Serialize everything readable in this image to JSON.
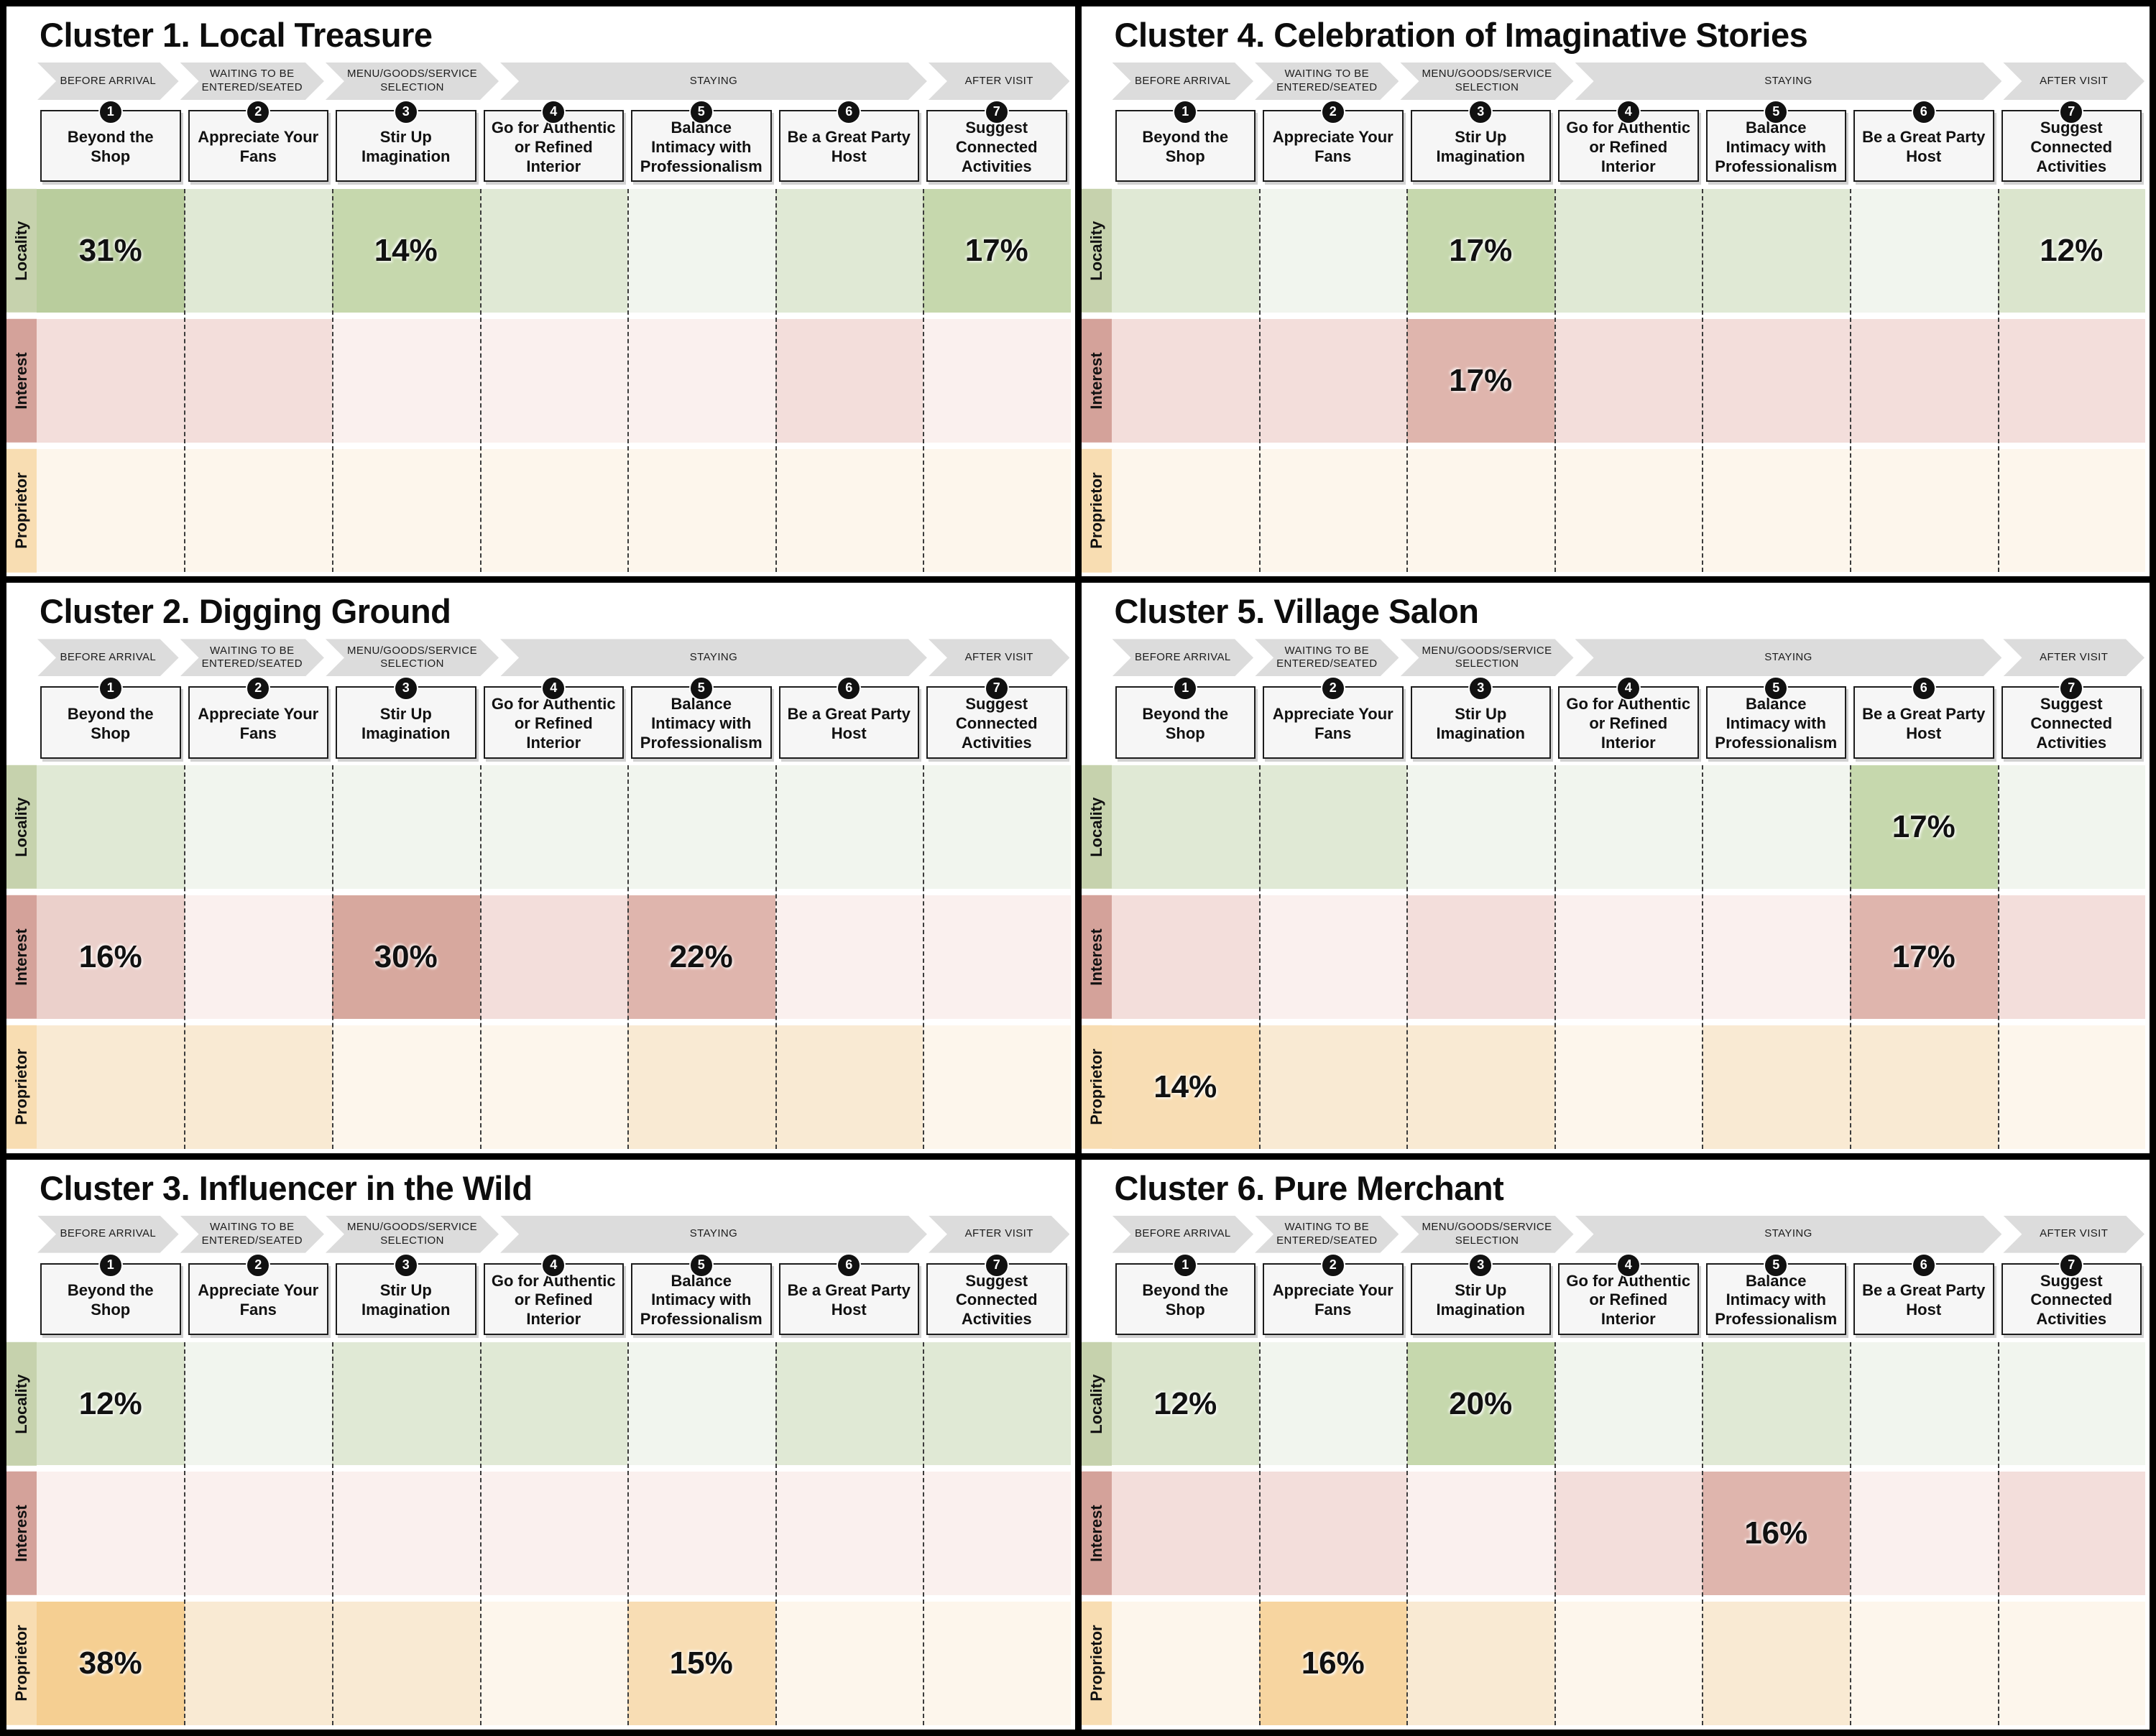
{
  "palette": {
    "green": [
      "#f1f5ee",
      "#e0e9d5",
      "#dbe5cd",
      "#c6d8ad",
      "#b9cd9d"
    ],
    "red": [
      "#faf0ee",
      "#f3dedb",
      "#ebd0cb",
      "#dfb5ad",
      "#d7a89e"
    ],
    "orange": [
      "#fdf6ec",
      "#f9ead3",
      "#f8ddb4",
      "#f7d5a0",
      "#f5cf92"
    ],
    "row_label_bg": [
      "#c6d2ad",
      "#d4a29a",
      "#f8ddb2"
    ],
    "chevron_bg": "#dcdcdc",
    "step_box_bg": "#f6f6f6",
    "step_box_border": "#1c1c1c",
    "divider_dash": "#3c3c3c",
    "frame": "#000000"
  },
  "journey": {
    "phases": [
      {
        "label": "BEFORE ARRIVAL",
        "span": 1
      },
      {
        "label": "WAITING TO BE ENTERED/SEATED",
        "span": 1
      },
      {
        "label": "MENU/GOODS/SERVICE SELECTION",
        "span": 1
      },
      {
        "label": "STAYING",
        "span": 3
      },
      {
        "label": "AFTER VISIT",
        "span": 1
      }
    ],
    "steps": [
      {
        "number": "1",
        "label": "Beyond the Shop"
      },
      {
        "number": "2",
        "label": "Appreciate Your Fans"
      },
      {
        "number": "3",
        "label": "Stir Up Imagination"
      },
      {
        "number": "4",
        "label": "Go for Authentic or Refined Interior"
      },
      {
        "number": "5",
        "label": "Balance Intimacy with Professionalism"
      },
      {
        "number": "6",
        "label": "Be a Great Party Host"
      },
      {
        "number": "7",
        "label": "Suggest Connected Activities"
      }
    ]
  },
  "rows": [
    "Locality",
    "Interest",
    "Proprietor"
  ],
  "panels": [
    {
      "title": "Cluster 1. Local Treasure",
      "cells": [
        [
          {
            "value": "31%",
            "tone": 4
          },
          {
            "tone": 1
          },
          {
            "value": "14%",
            "tone": 3
          },
          {
            "tone": 1
          },
          {
            "tone": 0
          },
          {
            "tone": 1
          },
          {
            "value": "17%",
            "tone": 3
          }
        ],
        [
          {
            "tone": 1
          },
          {
            "tone": 1
          },
          {
            "tone": 0
          },
          {
            "tone": 0
          },
          {
            "tone": 0
          },
          {
            "tone": 1
          },
          {
            "tone": 0
          }
        ],
        [
          {
            "tone": 0
          },
          {
            "tone": 0
          },
          {
            "tone": 0
          },
          {
            "tone": 0
          },
          {
            "tone": 0
          },
          {
            "tone": 0
          },
          {
            "tone": 0
          }
        ]
      ]
    },
    {
      "title": "Cluster 4. Celebration of Imaginative Stories",
      "cells": [
        [
          {
            "tone": 1
          },
          {
            "tone": 0
          },
          {
            "value": "17%",
            "tone": 3
          },
          {
            "tone": 1
          },
          {
            "tone": 1
          },
          {
            "tone": 0
          },
          {
            "value": "12%",
            "tone": 2
          }
        ],
        [
          {
            "tone": 1
          },
          {
            "tone": 1
          },
          {
            "value": "17%",
            "tone": 3
          },
          {
            "tone": 1
          },
          {
            "tone": 1
          },
          {
            "tone": 1
          },
          {
            "tone": 1
          }
        ],
        [
          {
            "tone": 0
          },
          {
            "tone": 0
          },
          {
            "tone": 0
          },
          {
            "tone": 0
          },
          {
            "tone": 0
          },
          {
            "tone": 0
          },
          {
            "tone": 0
          }
        ]
      ]
    },
    {
      "title": "Cluster 2. Digging Ground",
      "cells": [
        [
          {
            "tone": 1
          },
          {
            "tone": 0
          },
          {
            "tone": 0
          },
          {
            "tone": 0
          },
          {
            "tone": 0
          },
          {
            "tone": 0
          },
          {
            "tone": 0
          }
        ],
        [
          {
            "value": "16%",
            "tone": 2
          },
          {
            "tone": 0
          },
          {
            "value": "30%",
            "tone": 4
          },
          {
            "tone": 1
          },
          {
            "value": "22%",
            "tone": 3
          },
          {
            "tone": 0
          },
          {
            "tone": 0
          }
        ],
        [
          {
            "tone": 1
          },
          {
            "tone": 1
          },
          {
            "tone": 0
          },
          {
            "tone": 0
          },
          {
            "tone": 1
          },
          {
            "tone": 1
          },
          {
            "tone": 0
          }
        ]
      ]
    },
    {
      "title": "Cluster 5. Village Salon",
      "cells": [
        [
          {
            "tone": 1
          },
          {
            "tone": 1
          },
          {
            "tone": 0
          },
          {
            "tone": 0
          },
          {
            "tone": 0
          },
          {
            "value": "17%",
            "tone": 3
          },
          {
            "tone": 0
          }
        ],
        [
          {
            "tone": 1
          },
          {
            "tone": 0
          },
          {
            "tone": 1
          },
          {
            "tone": 0
          },
          {
            "tone": 0
          },
          {
            "value": "17%",
            "tone": 3
          },
          {
            "tone": 1
          }
        ],
        [
          {
            "value": "14%",
            "tone": 2
          },
          {
            "tone": 1
          },
          {
            "tone": 1
          },
          {
            "tone": 0
          },
          {
            "tone": 1
          },
          {
            "tone": 1
          },
          {
            "tone": 0
          }
        ]
      ]
    },
    {
      "title": "Cluster 3. Influencer in the Wild",
      "cells": [
        [
          {
            "value": "12%",
            "tone": 2
          },
          {
            "tone": 0
          },
          {
            "tone": 1
          },
          {
            "tone": 1
          },
          {
            "tone": 0
          },
          {
            "tone": 1
          },
          {
            "tone": 1
          }
        ],
        [
          {
            "tone": 0
          },
          {
            "tone": 0
          },
          {
            "tone": 0
          },
          {
            "tone": 0
          },
          {
            "tone": 0
          },
          {
            "tone": 0
          },
          {
            "tone": 0
          }
        ],
        [
          {
            "value": "38%",
            "tone": 4
          },
          {
            "tone": 1
          },
          {
            "tone": 1
          },
          {
            "tone": 0
          },
          {
            "value": "15%",
            "tone": 2
          },
          {
            "tone": 0
          },
          {
            "tone": 0
          }
        ]
      ]
    },
    {
      "title": "Cluster 6. Pure Merchant",
      "cells": [
        [
          {
            "value": "12%",
            "tone": 2
          },
          {
            "tone": 0
          },
          {
            "value": "20%",
            "tone": 3
          },
          {
            "tone": 0
          },
          {
            "tone": 1
          },
          {
            "tone": 0
          },
          {
            "tone": 0
          }
        ],
        [
          {
            "tone": 1
          },
          {
            "tone": 1
          },
          {
            "tone": 0
          },
          {
            "tone": 1
          },
          {
            "value": "16%",
            "tone": 3
          },
          {
            "tone": 0
          },
          {
            "tone": 1
          }
        ],
        [
          {
            "tone": 0
          },
          {
            "value": "16%",
            "tone": 3
          },
          {
            "tone": 1
          },
          {
            "tone": 0
          },
          {
            "tone": 1
          },
          {
            "tone": 0
          },
          {
            "tone": 0
          }
        ]
      ]
    }
  ],
  "chart_data": [
    {
      "type": "heatmap",
      "title": "Cluster 1. Local Treasure",
      "rows": [
        "Locality",
        "Interest",
        "Proprietor"
      ],
      "columns": [
        "Beyond the Shop",
        "Appreciate Your Fans",
        "Stir Up Imagination",
        "Go for Authentic or Refined Interior",
        "Balance Intimacy with Professionalism",
        "Be a Great Party Host",
        "Suggest Connected Activities"
      ],
      "values_unit": "percent",
      "values": [
        [
          31,
          null,
          14,
          null,
          null,
          null,
          17
        ],
        [
          null,
          null,
          null,
          null,
          null,
          null,
          null
        ],
        [
          null,
          null,
          null,
          null,
          null,
          null,
          null
        ]
      ]
    },
    {
      "type": "heatmap",
      "title": "Cluster 2. Digging Ground",
      "rows": [
        "Locality",
        "Interest",
        "Proprietor"
      ],
      "columns": [
        "Beyond the Shop",
        "Appreciate Your Fans",
        "Stir Up Imagination",
        "Go for Authentic or Refined Interior",
        "Balance Intimacy with Professionalism",
        "Be a Great Party Host",
        "Suggest Connected Activities"
      ],
      "values_unit": "percent",
      "values": [
        [
          null,
          null,
          null,
          null,
          null,
          null,
          null
        ],
        [
          16,
          null,
          30,
          null,
          22,
          null,
          null
        ],
        [
          null,
          null,
          null,
          null,
          null,
          null,
          null
        ]
      ]
    },
    {
      "type": "heatmap",
      "title": "Cluster 3. Influencer in the Wild",
      "rows": [
        "Locality",
        "Interest",
        "Proprietor"
      ],
      "columns": [
        "Beyond the Shop",
        "Appreciate Your Fans",
        "Stir Up Imagination",
        "Go for Authentic or Refined Interior",
        "Balance Intimacy with Professionalism",
        "Be a Great Party Host",
        "Suggest Connected Activities"
      ],
      "values_unit": "percent",
      "values": [
        [
          12,
          null,
          null,
          null,
          null,
          null,
          null
        ],
        [
          null,
          null,
          null,
          null,
          null,
          null,
          null
        ],
        [
          38,
          null,
          null,
          null,
          15,
          null,
          null
        ]
      ]
    },
    {
      "type": "heatmap",
      "title": "Cluster 4. Celebration of Imaginative Stories",
      "rows": [
        "Locality",
        "Interest",
        "Proprietor"
      ],
      "columns": [
        "Beyond the Shop",
        "Appreciate Your Fans",
        "Stir Up Imagination",
        "Go for Authentic or Refined Interior",
        "Balance Intimacy with Professionalism",
        "Be a Great Party Host",
        "Suggest Connected Activities"
      ],
      "values_unit": "percent",
      "values": [
        [
          null,
          null,
          17,
          null,
          null,
          null,
          12
        ],
        [
          null,
          null,
          17,
          null,
          null,
          null,
          null
        ],
        [
          null,
          null,
          null,
          null,
          null,
          null,
          null
        ]
      ]
    },
    {
      "type": "heatmap",
      "title": "Cluster 5. Village Salon",
      "rows": [
        "Locality",
        "Interest",
        "Proprietor"
      ],
      "columns": [
        "Beyond the Shop",
        "Appreciate Your Fans",
        "Stir Up Imagination",
        "Go for Authentic or Refined Interior",
        "Balance Intimacy with Professionalism",
        "Be a Great Party Host",
        "Suggest Connected Activities"
      ],
      "values_unit": "percent",
      "values": [
        [
          null,
          null,
          null,
          null,
          null,
          17,
          null
        ],
        [
          null,
          null,
          null,
          null,
          null,
          17,
          null
        ],
        [
          14,
          null,
          null,
          null,
          null,
          null,
          null
        ]
      ]
    },
    {
      "type": "heatmap",
      "title": "Cluster 6. Pure Merchant",
      "rows": [
        "Locality",
        "Interest",
        "Proprietor"
      ],
      "columns": [
        "Beyond the Shop",
        "Appreciate Your Fans",
        "Stir Up Imagination",
        "Go for Authentic or Refined Interior",
        "Balance Intimacy with Professionalism",
        "Be a Great Party Host",
        "Suggest Connected Activities"
      ],
      "values_unit": "percent",
      "values": [
        [
          12,
          null,
          20,
          null,
          null,
          null,
          null
        ],
        [
          null,
          null,
          null,
          null,
          16,
          null,
          null
        ],
        [
          null,
          16,
          null,
          null,
          null,
          null,
          null
        ]
      ]
    }
  ]
}
